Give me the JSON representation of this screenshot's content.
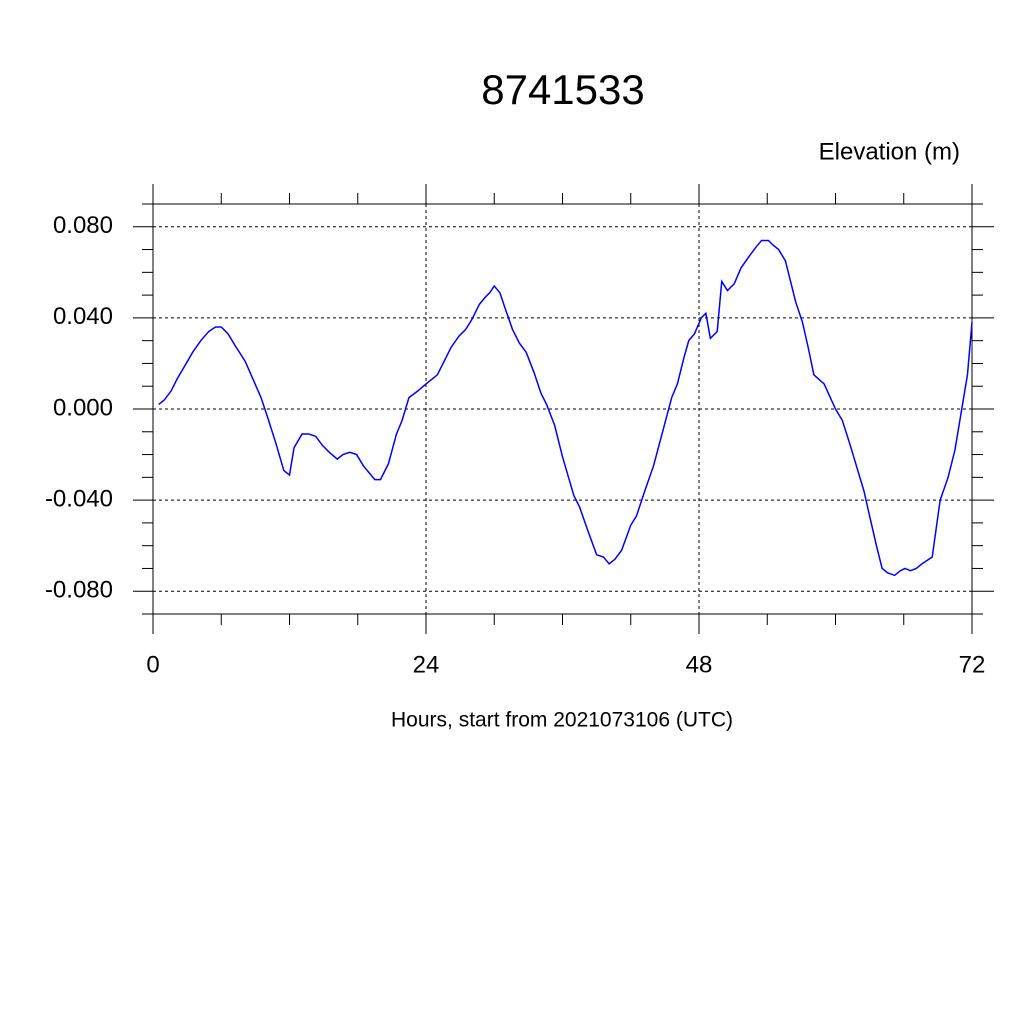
{
  "chart_data": {
    "type": "line",
    "title": "8741533",
    "y_label": "Elevation (m)",
    "x_label": "Hours, start from 2021073106 (UTC)",
    "xlim": [
      0,
      72
    ],
    "ylim": [
      -0.09,
      0.09
    ],
    "xticks": [
      0,
      24,
      48,
      72
    ],
    "yticks": [
      {
        "value": -0.08,
        "label": "-0.080"
      },
      {
        "value": -0.04,
        "label": "-0.040"
      },
      {
        "value": 0,
        "label": "0.000"
      },
      {
        "value": 0.04,
        "label": "0.040"
      },
      {
        "value": 0.08,
        "label": "0.080"
      }
    ],
    "xminor": [
      6,
      12,
      18,
      30,
      36,
      42,
      54,
      60,
      66
    ],
    "yminor": [
      -0.09,
      -0.07,
      -0.06,
      -0.05,
      -0.03,
      -0.02,
      -0.01,
      0.01,
      0.02,
      0.03,
      0.05,
      0.06,
      0.07,
      0.09
    ],
    "grid": true,
    "series": [
      {
        "color": "#0000ff",
        "x": [
          0.5,
          1.0,
          1.6,
          2.1,
          2.8,
          3.5,
          4.2,
          4.9,
          5.5,
          6.0,
          6.6,
          7.2,
          8.1,
          8.8,
          9.5,
          10.1,
          10.8,
          11.5,
          12.0,
          12.4,
          13.1,
          13.7,
          14.3,
          14.9,
          15.5,
          16.2,
          16.7,
          17.3,
          17.9,
          18.5,
          19.5,
          20.0,
          20.7,
          21.4,
          21.9,
          22.5,
          23.3,
          24.0,
          25.0,
          25.5,
          26.2,
          26.9,
          27.5,
          28.0,
          28.7,
          29.2,
          29.6,
          30.0,
          30.5,
          30.9,
          31.6,
          32.2,
          32.8,
          33.5,
          34.1,
          34.6,
          35.3,
          36.0,
          37.0,
          37.5,
          38.2,
          39.0,
          39.6,
          40.1,
          40.6,
          41.2,
          42.0,
          42.5,
          43.3,
          44.0,
          44.8,
          45.6,
          46.1,
          46.7,
          47.1,
          47.6,
          48.2,
          48.6,
          49.0,
          49.6,
          50.0,
          50.5,
          51.1,
          51.7,
          52.4,
          53.0,
          53.5,
          54.1,
          54.5,
          55.0,
          55.6,
          56.1,
          56.5,
          57.1,
          57.6,
          58.1,
          59.0,
          60.0,
          60.6,
          61.3,
          61.9,
          62.5,
          63.0,
          63.6,
          64.1,
          64.6,
          65.2,
          65.7,
          66.1,
          66.6,
          67.1,
          67.6,
          68.5,
          69.2,
          69.9,
          70.5,
          71.1,
          71.6,
          72.0
        ],
        "values": [
          0.002,
          0.004,
          0.008,
          0.013,
          0.019,
          0.025,
          0.03,
          0.034,
          0.036,
          0.036,
          0.033,
          0.028,
          0.021,
          0.013,
          0.005,
          -0.004,
          -0.015,
          -0.027,
          -0.029,
          -0.017,
          -0.011,
          -0.011,
          -0.012,
          -0.016,
          -0.019,
          -0.022,
          -0.02,
          -0.019,
          -0.02,
          -0.025,
          -0.031,
          -0.031,
          -0.024,
          -0.011,
          -0.005,
          0.005,
          0.008,
          0.011,
          0.015,
          0.02,
          0.027,
          0.032,
          0.035,
          0.039,
          0.046,
          0.049,
          0.051,
          0.054,
          0.051,
          0.045,
          0.035,
          0.029,
          0.025,
          0.016,
          0.007,
          0.002,
          -0.007,
          -0.021,
          -0.038,
          -0.043,
          -0.053,
          -0.064,
          -0.065,
          -0.068,
          -0.066,
          -0.062,
          -0.051,
          -0.047,
          -0.035,
          -0.025,
          -0.01,
          0.005,
          0.011,
          0.023,
          0.03,
          0.033,
          0.04,
          0.042,
          0.031,
          0.034,
          0.056,
          0.052,
          0.055,
          0.062,
          0.067,
          0.071,
          0.074,
          0.074,
          0.072,
          0.07,
          0.065,
          0.055,
          0.047,
          0.038,
          0.027,
          0.015,
          0.011,
          0.0,
          -0.005,
          -0.016,
          -0.026,
          -0.036,
          -0.047,
          -0.06,
          -0.07,
          -0.072,
          -0.073,
          -0.071,
          -0.07,
          -0.071,
          -0.07,
          -0.068,
          -0.065,
          -0.04,
          -0.03,
          -0.018,
          0.0,
          0.015,
          0.038
        ]
      }
    ]
  }
}
